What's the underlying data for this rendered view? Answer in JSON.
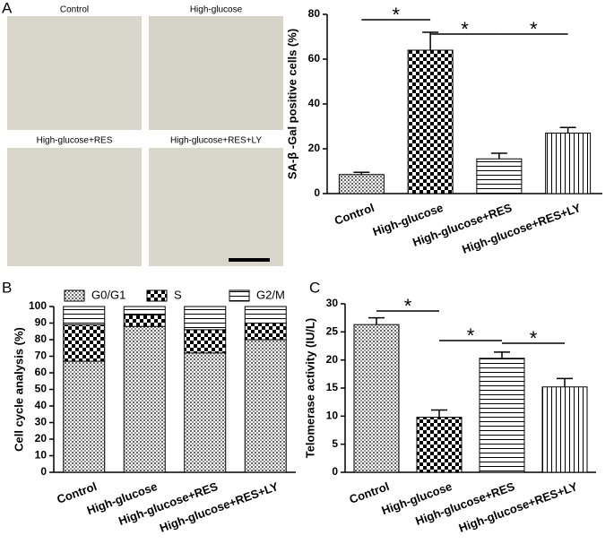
{
  "panel_labels": [
    "A",
    "B",
    "C"
  ],
  "images": {
    "labels": [
      "Control",
      "High-glucose",
      "High-glucose+RES",
      "High-glucose+RES+LY"
    ]
  },
  "chart_data": [
    {
      "type": "bar",
      "ylabel": "SA-β -Gal positive cells (%)",
      "categories": [
        "Control",
        "High-glucose",
        "High-glucose+RES",
        "High-glucose+RES+LY"
      ],
      "values": [
        8.5,
        64,
        15.5,
        27
      ],
      "errors": [
        1,
        8,
        2.5,
        2.5
      ],
      "ylim": [
        0,
        80
      ],
      "yticks": [
        0,
        20,
        40,
        60,
        80
      ],
      "annotations": [
        "*",
        "*",
        "*"
      ]
    },
    {
      "type": "stacked_bar",
      "ylabel": "Cell cycle analysis (%)",
      "categories": [
        "Control",
        "High-glucose",
        "High-glucose+RES",
        "High-glucose+RES+LY"
      ],
      "series": [
        {
          "name": "G0/G1",
          "values": [
            67,
            88,
            72,
            80
          ]
        },
        {
          "name": "S",
          "values": [
            22,
            7,
            14,
            10
          ]
        },
        {
          "name": "G2/M",
          "values": [
            11,
            5,
            14,
            10
          ]
        }
      ],
      "ylim": [
        0,
        100
      ],
      "yticks": [
        0,
        10,
        20,
        30,
        40,
        50,
        60,
        70,
        80,
        90,
        100
      ]
    },
    {
      "type": "bar",
      "ylabel": "Telomerase activity (IU/L)",
      "categories": [
        "Control",
        "High-glucose",
        "High-glucose+RES",
        "High-glucose+RES+LY"
      ],
      "values": [
        26.3,
        9.8,
        20.3,
        15.2
      ],
      "errors": [
        1.2,
        1.3,
        1.1,
        1.5
      ],
      "ylim": [
        0,
        30
      ],
      "yticks": [
        0,
        5,
        10,
        15,
        20,
        25,
        30
      ],
      "annotations": [
        "*",
        "*",
        "*"
      ]
    }
  ]
}
